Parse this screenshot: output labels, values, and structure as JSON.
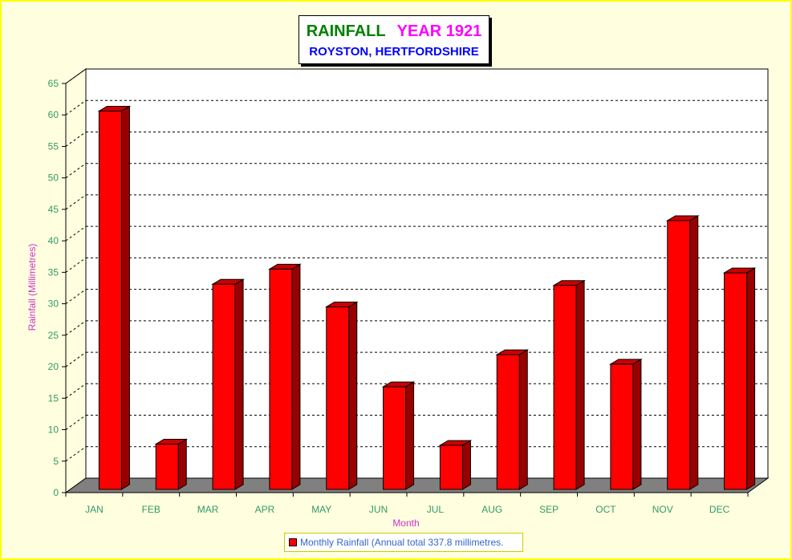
{
  "chart_data": {
    "type": "bar",
    "title": "RAINFALL",
    "title_year": "YEAR 1921",
    "subtitle": "ROYSTON, HERTFORDSHIRE",
    "xlabel": "Month",
    "ylabel": "Rainfall  (Millimetres)",
    "categories": [
      "JAN",
      "FEB",
      "MAR",
      "APR",
      "MAY",
      "JUN",
      "JUL",
      "AUG",
      "SEP",
      "OCT",
      "NOV",
      "DEC"
    ],
    "series": [
      {
        "name": "Monthly Rainfall (Annual total 337.8 millimetres.",
        "values": [
          60.1,
          7.2,
          32.6,
          35.0,
          29.0,
          16.3,
          7.0,
          21.4,
          32.4,
          19.9,
          42.7,
          34.4
        ]
      }
    ],
    "ylim": [
      0,
      65
    ],
    "yticks": [
      0,
      5,
      10,
      15,
      20,
      25,
      30,
      35,
      40,
      45,
      50,
      55,
      60,
      65
    ],
    "grid": true,
    "legend_position": "bottom"
  },
  "colors": {
    "bar_front": "#ff0000",
    "bar_top": "#cc0000",
    "bar_side": "#990000",
    "floor": "#808080",
    "axis_text": "#339966",
    "axis_title": "#cc33cc",
    "title_main": "#008000",
    "title_year": "#ff00ff",
    "subtitle": "#0000ff"
  }
}
